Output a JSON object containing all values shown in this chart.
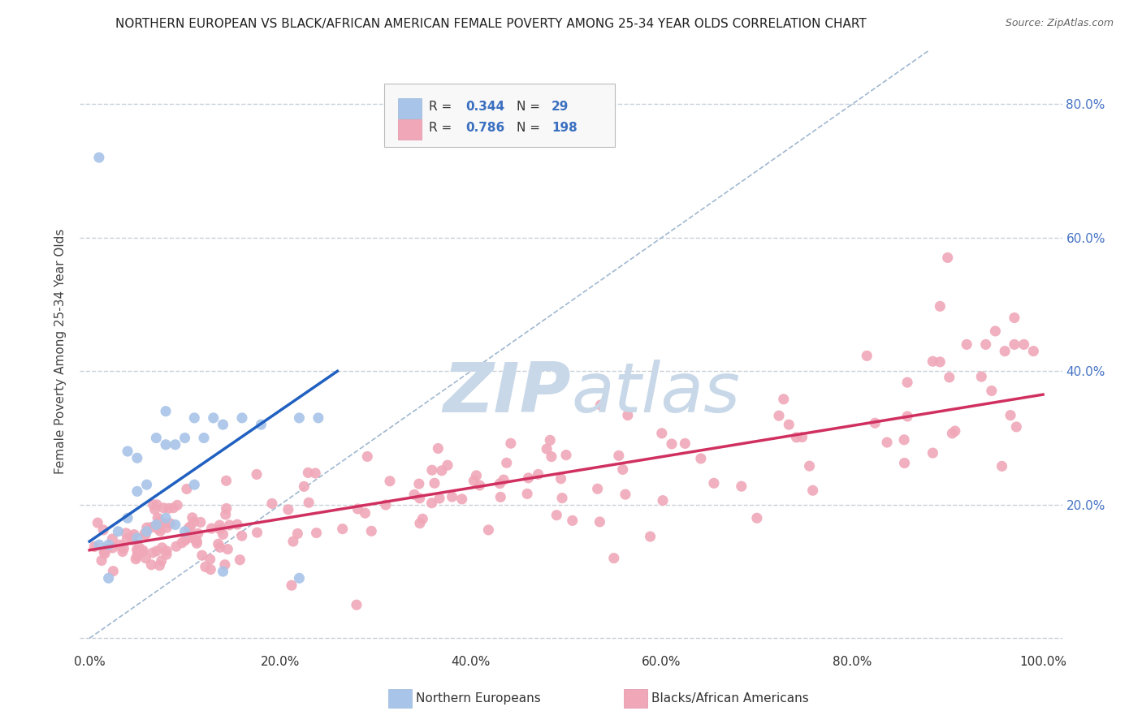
{
  "title": "NORTHERN EUROPEAN VS BLACK/AFRICAN AMERICAN FEMALE POVERTY AMONG 25-34 YEAR OLDS CORRELATION CHART",
  "source": "Source: ZipAtlas.com",
  "ylabel": "Female Poverty Among 25-34 Year Olds",
  "xlim": [
    -0.01,
    1.02
  ],
  "ylim": [
    -0.02,
    0.88
  ],
  "xticks": [
    0.0,
    0.2,
    0.4,
    0.6,
    0.8,
    1.0
  ],
  "yticks": [
    0.0,
    0.2,
    0.4,
    0.6,
    0.8
  ],
  "r_blue": "0.344",
  "n_blue": "29",
  "r_pink": "0.786",
  "n_pink": "198",
  "blue_color": "#a8c4e8",
  "pink_color": "#f0a8b8",
  "blue_line_color": "#2060c0",
  "pink_line_color": "#d03060",
  "diag_color": "#a0b8d0",
  "watermark_zip": "ZIP",
  "watermark_atlas": "atlas",
  "watermark_color": "#c8d8e8",
  "background_color": "#ffffff",
  "grid_color": "#c8d0d8",
  "legend_label_blue": "Northern Europeans",
  "legend_label_pink": "Blacks/African Americans",
  "title_fontsize": 11,
  "axis_label_fontsize": 11,
  "tick_fontsize": 11,
  "blue_trend_x": [
    0.0,
    0.26
  ],
  "blue_trend_y": [
    0.145,
    0.4
  ],
  "pink_trend_x": [
    0.0,
    1.0
  ],
  "pink_trend_y": [
    0.132,
    0.365
  ]
}
